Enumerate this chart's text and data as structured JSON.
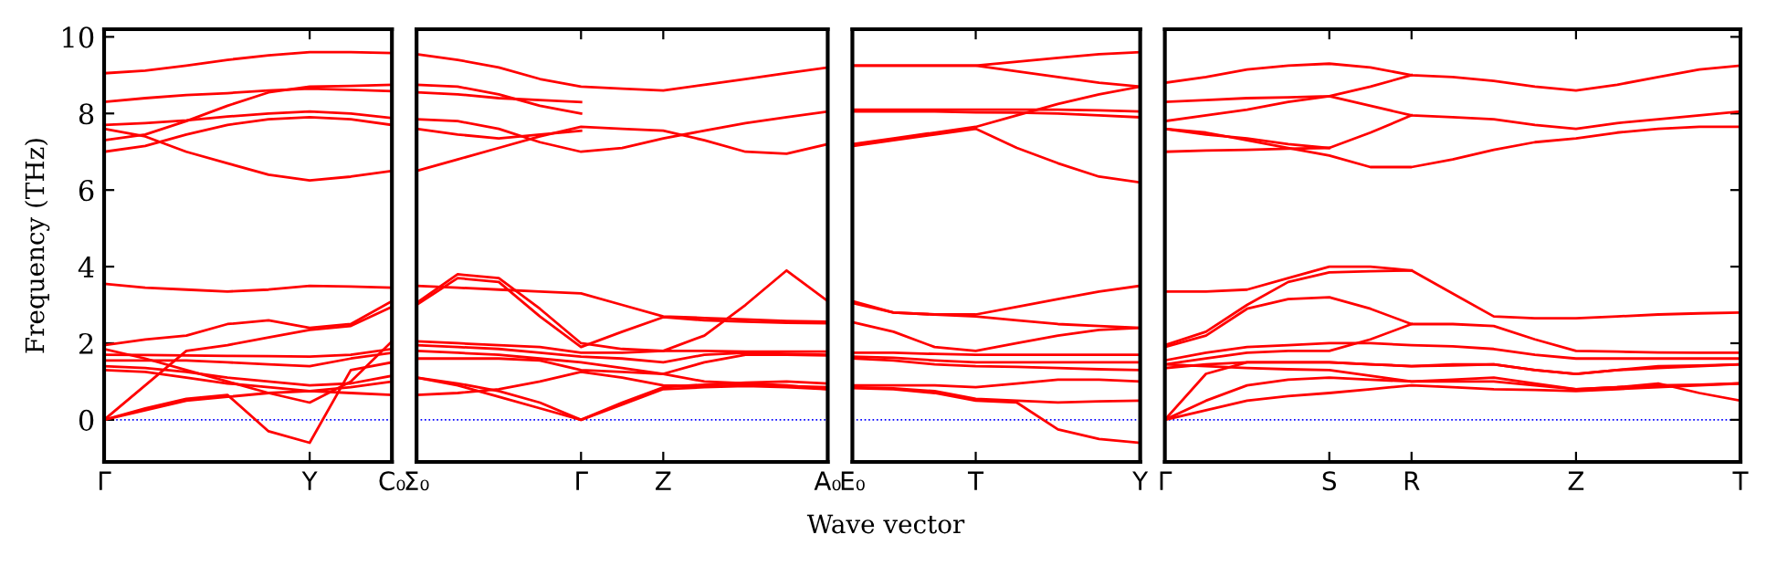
{
  "chart_data": [
    {
      "type": "line",
      "ylabel": "Frequency (THz)",
      "ylim": [
        -1.1,
        10.2
      ],
      "yticks": [
        0,
        2,
        4,
        6,
        8,
        10
      ],
      "categories": [
        "Γ",
        null,
        null,
        null,
        null,
        "Y",
        null,
        "C₀"
      ],
      "ref_lines": [
        {
          "axis": "y",
          "value": 0,
          "color": "#0000ff",
          "line_style": "dotted"
        }
      ],
      "series": [
        {
          "color": "#ff0000",
          "values": [
            9.05,
            9.12,
            9.25,
            9.4,
            9.52,
            9.6,
            9.6,
            9.58
          ]
        },
        {
          "color": "#ff0000",
          "values": [
            8.3,
            8.4,
            8.48,
            8.53,
            8.6,
            8.65,
            8.62,
            8.58
          ]
        },
        {
          "color": "#ff0000",
          "values": [
            7.3,
            7.45,
            7.8,
            8.2,
            8.55,
            8.7,
            8.72,
            8.75
          ]
        },
        {
          "color": "#ff0000",
          "values": [
            7.7,
            7.75,
            7.82,
            7.92,
            8.0,
            8.05,
            8.0,
            7.88
          ]
        },
        {
          "color": "#ff0000",
          "values": [
            7.0,
            7.15,
            7.45,
            7.7,
            7.85,
            7.9,
            7.85,
            7.7
          ]
        },
        {
          "color": "#ff0000",
          "values": [
            7.6,
            7.4,
            7.0,
            6.7,
            6.4,
            6.25,
            6.35,
            6.5
          ]
        },
        {
          "color": "#ff0000",
          "values": [
            3.55,
            3.45,
            3.4,
            3.35,
            3.4,
            3.5,
            3.48,
            3.45
          ]
        },
        {
          "color": "#ff0000",
          "values": [
            1.95,
            2.1,
            2.2,
            2.5,
            2.6,
            2.4,
            2.5,
            3.1
          ]
        },
        {
          "color": "#ff0000",
          "values": [
            0,
            0.9,
            1.8,
            1.95,
            2.15,
            2.35,
            2.45,
            2.95
          ]
        },
        {
          "color": "#ff0000",
          "values": [
            1.85,
            1.6,
            1.3,
            1.0,
            0.7,
            0.45,
            1.0,
            2.05
          ]
        },
        {
          "color": "#ff0000",
          "values": [
            1.7,
            1.69,
            1.68,
            1.67,
            1.66,
            1.65,
            1.7,
            1.85
          ]
        },
        {
          "color": "#ff0000",
          "values": [
            1.55,
            1.55,
            1.55,
            1.5,
            1.45,
            1.4,
            1.6,
            1.75
          ]
        },
        {
          "color": "#ff0000",
          "values": [
            1.4,
            1.35,
            1.25,
            1.1,
            1.0,
            0.9,
            0.95,
            1.15
          ]
        },
        {
          "color": "#ff0000",
          "values": [
            1.3,
            1.25,
            1.1,
            0.95,
            0.85,
            0.75,
            0.85,
            1.0
          ]
        },
        {
          "color": "#ff0000",
          "values": [
            0,
            0.3,
            0.55,
            0.65,
            -0.3,
            -0.6,
            1.3,
            1.5
          ]
        },
        {
          "color": "#ff0000",
          "values": [
            0,
            0.25,
            0.5,
            0.6,
            0.7,
            0.75,
            0.7,
            0.65
          ]
        }
      ]
    },
    {
      "type": "line",
      "ylim": [
        -1.1,
        10.2
      ],
      "tick_labels": "x",
      "categories": [
        "Σ₀",
        null,
        null,
        null,
        "Γ",
        null,
        "Z",
        null,
        null,
        null,
        "A₀"
      ],
      "ref_lines": [
        {
          "axis": "y",
          "value": 0,
          "color": "#0000ff",
          "line_style": "dotted"
        }
      ],
      "series": [
        {
          "color": "#ff0000",
          "values": [
            9.55,
            9.4,
            9.2,
            8.9,
            8.7,
            8.65,
            8.6,
            8.75,
            8.9,
            9.05,
            9.2
          ]
        },
        {
          "color": "#ff0000",
          "values": [
            8.75,
            8.7,
            8.5,
            8.2,
            8.0,
            null,
            null,
            null,
            null,
            null,
            null
          ]
        },
        {
          "color": "#ff0000",
          "values": [
            8.55,
            8.5,
            8.4,
            8.35,
            8.3,
            null,
            null,
            null,
            null,
            null,
            null
          ]
        },
        {
          "color": "#ff0000",
          "values": [
            7.85,
            7.8,
            7.6,
            7.25,
            7.0,
            7.1,
            7.35,
            7.55,
            7.75,
            7.9,
            8.05
          ]
        },
        {
          "color": "#ff0000",
          "values": [
            7.6,
            7.45,
            7.35,
            7.45,
            7.55,
            null,
            null,
            null,
            null,
            null,
            null
          ]
        },
        {
          "color": "#ff0000",
          "values": [
            6.5,
            6.8,
            7.1,
            7.4,
            7.65,
            7.6,
            7.55,
            7.3,
            7.0,
            6.95,
            7.2
          ]
        },
        {
          "color": "#ff0000",
          "values": [
            3.5,
            3.45,
            3.4,
            3.35,
            3.3,
            3.0,
            2.7,
            2.66,
            2.62,
            2.58,
            2.56
          ]
        },
        {
          "color": "#ff0000",
          "values": [
            3.05,
            3.8,
            3.7,
            2.9,
            2.0,
            1.85,
            1.8,
            2.2,
            3.0,
            3.9,
            3.1
          ]
        },
        {
          "color": "#ff0000",
          "values": [
            3.0,
            3.7,
            3.6,
            2.7,
            1.9,
            2.3,
            2.68,
            2.6,
            2.56,
            2.53,
            2.52
          ]
        },
        {
          "color": "#ff0000",
          "values": [
            2.05,
            2.0,
            1.95,
            1.9,
            1.75,
            1.75,
            1.8,
            1.8,
            1.78,
            1.78,
            1.78
          ]
        },
        {
          "color": "#ff0000",
          "values": [
            1.95,
            1.9,
            1.85,
            1.75,
            1.65,
            1.6,
            1.5,
            1.7,
            1.75,
            1.72,
            1.7
          ]
        },
        {
          "color": "#ff0000",
          "values": [
            1.8,
            1.75,
            1.7,
            1.6,
            1.5,
            1.35,
            1.2,
            1.5,
            1.7,
            1.7,
            1.68
          ]
        },
        {
          "color": "#ff0000",
          "values": [
            1.6,
            1.6,
            1.6,
            1.55,
            1.3,
            1.25,
            1.2,
            1.0,
            0.95,
            0.9,
            0.8
          ]
        },
        {
          "color": "#ff0000",
          "values": [
            1.1,
            0.95,
            0.75,
            0.45,
            0,
            0.45,
            0.85,
            0.92,
            0.97,
            1.0,
            0.95
          ]
        },
        {
          "color": "#ff0000",
          "values": [
            0.65,
            0.7,
            0.8,
            1.0,
            1.25,
            1.1,
            0.9,
            0.88,
            0.9,
            0.88,
            0.85
          ]
        },
        {
          "color": "#ff0000",
          "values": [
            1.1,
            0.9,
            0.6,
            0.3,
            0,
            0.4,
            0.8,
            0.85,
            0.88,
            0.85,
            0.8
          ]
        }
      ]
    },
    {
      "type": "line",
      "xlabel": "Wave vector",
      "ylim": [
        -1.1,
        10.2
      ],
      "tick_labels": "x",
      "categories": [
        "E₀",
        null,
        null,
        "T",
        null,
        null,
        null,
        "Y"
      ],
      "ref_lines": [
        {
          "axis": "y",
          "value": 0,
          "color": "#0000ff",
          "line_style": "dotted"
        }
      ],
      "series": [
        {
          "color": "#ff0000",
          "values": [
            9.25,
            9.25,
            9.25,
            9.25,
            9.35,
            9.45,
            9.55,
            9.6
          ]
        },
        {
          "color": "#ff0000",
          "values": [
            9.25,
            9.25,
            9.25,
            9.25,
            9.1,
            8.95,
            8.8,
            8.7
          ]
        },
        {
          "color": "#ff0000",
          "values": [
            8.1,
            8.1,
            8.1,
            8.1,
            8.1,
            8.1,
            8.08,
            8.05
          ]
        },
        {
          "color": "#ff0000",
          "values": [
            8.05,
            8.05,
            8.05,
            8.03,
            8.02,
            8.0,
            7.95,
            7.9
          ]
        },
        {
          "color": "#ff0000",
          "values": [
            7.2,
            7.35,
            7.5,
            7.65,
            7.95,
            8.25,
            8.5,
            8.7
          ]
        },
        {
          "color": "#ff0000",
          "values": [
            7.15,
            7.3,
            7.45,
            7.6,
            7.1,
            6.7,
            6.35,
            6.2
          ]
        },
        {
          "color": "#ff0000",
          "values": [
            3.1,
            2.8,
            2.75,
            2.75,
            2.95,
            3.15,
            3.35,
            3.5
          ]
        },
        {
          "color": "#ff0000",
          "values": [
            3.05,
            2.8,
            2.75,
            2.7,
            2.6,
            2.5,
            2.45,
            2.4
          ]
        },
        {
          "color": "#ff0000",
          "values": [
            2.55,
            2.3,
            1.9,
            1.8,
            2.0,
            2.2,
            2.35,
            2.4
          ]
        },
        {
          "color": "#ff0000",
          "values": [
            1.75,
            1.75,
            1.72,
            1.7,
            1.7,
            1.7,
            1.7,
            1.7
          ]
        },
        {
          "color": "#ff0000",
          "values": [
            1.65,
            1.62,
            1.55,
            1.5,
            1.5,
            1.5,
            1.5,
            1.5
          ]
        },
        {
          "color": "#ff0000",
          "values": [
            1.6,
            1.55,
            1.45,
            1.4,
            1.38,
            1.35,
            1.32,
            1.3
          ]
        },
        {
          "color": "#ff0000",
          "values": [
            0.9,
            0.9,
            0.9,
            0.85,
            0.95,
            1.05,
            1.05,
            1.0
          ]
        },
        {
          "color": "#ff0000",
          "values": [
            0.85,
            0.82,
            0.75,
            0.55,
            0.5,
            0.45,
            0.48,
            0.5
          ]
        },
        {
          "color": "#ff0000",
          "values": [
            0.83,
            0.8,
            0.7,
            0.5,
            0.45,
            -0.25,
            -0.5,
            -0.6
          ]
        }
      ]
    },
    {
      "type": "line",
      "ylim": [
        -1.1,
        10.2
      ],
      "yticks": [
        0,
        2,
        4,
        6,
        8,
        10
      ],
      "tick_labels": "x",
      "categories": [
        "Γ",
        null,
        null,
        null,
        "S",
        null,
        "R",
        null,
        null,
        null,
        "Z",
        null,
        null,
        null,
        "T"
      ],
      "ref_lines": [
        {
          "axis": "y",
          "value": 0,
          "color": "#0000ff",
          "line_style": "dotted"
        }
      ],
      "series": [
        {
          "color": "#ff0000",
          "values": [
            8.8,
            8.95,
            9.15,
            9.25,
            9.3,
            9.2,
            9.0,
            8.95,
            8.85,
            8.7,
            8.6,
            8.75,
            8.95,
            9.15,
            9.25
          ]
        },
        {
          "color": "#ff0000",
          "values": [
            8.3,
            8.35,
            8.4,
            8.42,
            8.45,
            8.7,
            9.0,
            null,
            null,
            null,
            null,
            null,
            null,
            null,
            null
          ]
        },
        {
          "color": "#ff0000",
          "values": [
            7.8,
            7.95,
            8.1,
            8.3,
            8.45,
            8.2,
            7.95,
            7.9,
            7.85,
            7.7,
            7.6,
            7.75,
            7.85,
            7.95,
            8.05
          ]
        },
        {
          "color": "#ff0000",
          "values": [
            7.6,
            7.45,
            7.35,
            7.2,
            7.1,
            7.5,
            7.95,
            null,
            null,
            null,
            null,
            null,
            null,
            null,
            null
          ]
        },
        {
          "color": "#ff0000",
          "values": [
            7.0,
            7.03,
            7.05,
            7.08,
            7.1,
            null,
            null,
            null,
            null,
            null,
            null,
            null,
            null,
            null,
            null
          ]
        },
        {
          "color": "#ff0000",
          "values": [
            7.6,
            7.5,
            7.3,
            7.1,
            6.9,
            6.6,
            6.6,
            6.8,
            7.05,
            7.25,
            7.35,
            7.5,
            7.6,
            7.65,
            7.65
          ]
        },
        {
          "color": "#ff0000",
          "values": [
            3.35,
            3.35,
            3.4,
            3.7,
            4.0,
            4.0,
            3.9,
            3.3,
            2.7,
            2.65,
            2.65,
            2.7,
            2.75,
            2.78,
            2.8
          ]
        },
        {
          "color": "#ff0000",
          "values": [
            1.95,
            2.3,
            3.0,
            3.6,
            3.85,
            3.88,
            3.9,
            null,
            null,
            null,
            null,
            null,
            null,
            null,
            null
          ]
        },
        {
          "color": "#ff0000",
          "values": [
            1.9,
            2.2,
            2.9,
            3.15,
            3.2,
            2.9,
            2.5,
            2.5,
            2.45,
            2.1,
            1.8,
            1.78,
            1.76,
            1.75,
            1.75
          ]
        },
        {
          "color": "#ff0000",
          "values": [
            1.45,
            1.6,
            1.75,
            1.8,
            1.8,
            2.1,
            2.5,
            null,
            null,
            null,
            null,
            null,
            null,
            null,
            null
          ]
        },
        {
          "color": "#ff0000",
          "values": [
            1.55,
            1.75,
            1.9,
            1.95,
            2.0,
            2.0,
            1.95,
            1.92,
            1.85,
            1.7,
            1.6,
            1.6,
            1.6,
            1.6,
            1.6
          ]
        },
        {
          "color": "#ff0000",
          "values": [
            1.35,
            1.45,
            1.5,
            1.5,
            1.5,
            1.45,
            1.4,
            1.45,
            1.45,
            1.3,
            1.2,
            1.3,
            1.4,
            1.42,
            1.45
          ]
        },
        {
          "color": "#ff0000",
          "values": [
            1.45,
            1.4,
            1.35,
            1.32,
            1.3,
            1.15,
            1.0,
            1.05,
            1.1,
            0.95,
            0.8,
            0.85,
            0.9,
            0.92,
            0.95
          ]
        },
        {
          "color": "#ff0000",
          "values": [
            0,
            0.5,
            0.9,
            1.05,
            1.1,
            1.05,
            1.0,
            1.0,
            1.0,
            0.9,
            0.8,
            0.85,
            0.95,
            0.7,
            0.5
          ]
        },
        {
          "color": "#ff0000",
          "values": [
            0,
            0.25,
            0.5,
            0.62,
            0.7,
            0.8,
            0.9,
            0.85,
            0.8,
            0.78,
            0.75,
            0.8,
            0.85,
            0.9,
            0.95
          ]
        },
        {
          "color": "#ff0000",
          "values": [
            0,
            1.2,
            1.5,
            1.5,
            1.5,
            1.45,
            1.4,
            1.42,
            1.45,
            1.3,
            1.2,
            1.3,
            1.35,
            1.4,
            1.45
          ]
        }
      ]
    }
  ]
}
